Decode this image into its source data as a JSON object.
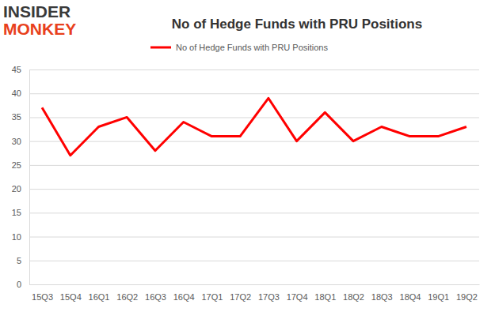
{
  "chart_data": {
    "type": "line",
    "title": "No of Hedge Funds with PRU Positions",
    "annotations": [
      "INSIDER",
      "MONKEY"
    ],
    "categories": [
      "15Q3",
      "15Q4",
      "16Q1",
      "16Q2",
      "16Q3",
      "16Q4",
      "17Q1",
      "17Q2",
      "17Q3",
      "17Q4",
      "18Q1",
      "18Q2",
      "18Q3",
      "18Q4",
      "19Q1",
      "19Q2"
    ],
    "series": [
      {
        "name": "No of Hedge Funds with PRU Positions",
        "color": "#ff0000",
        "line_style": "solid",
        "values": [
          37,
          27,
          33,
          35,
          28,
          34,
          31,
          31,
          39,
          30,
          36,
          30,
          33,
          31,
          31,
          33
        ]
      }
    ],
    "ylim": [
      0,
      45
    ],
    "yticks": [
      0,
      5,
      10,
      15,
      20,
      25,
      30,
      35,
      40,
      45
    ],
    "grid": true,
    "legend": "top"
  }
}
